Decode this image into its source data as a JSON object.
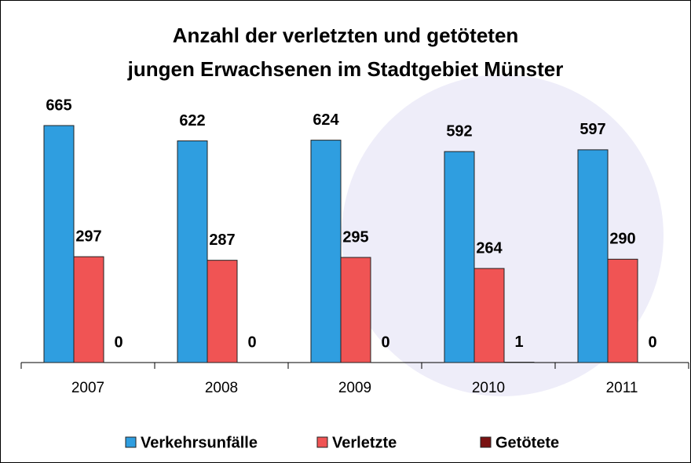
{
  "chart_data": {
    "type": "bar",
    "title": [
      "Anzahl der verletzten und getöteten",
      "jungen Erwachsenen im Stadtgebiet Münster"
    ],
    "categories": [
      "2007",
      "2008",
      "2009",
      "2010",
      "2011"
    ],
    "series": [
      {
        "name": "Verkehrsunfälle",
        "color": "#2f9ee0",
        "values": [
          665,
          622,
          624,
          592,
          597
        ]
      },
      {
        "name": "Verletzte",
        "color": "#f05454",
        "values": [
          297,
          287,
          295,
          264,
          290
        ]
      },
      {
        "name": "Getötete",
        "color": "#7a1212",
        "values": [
          0,
          0,
          0,
          1,
          0
        ]
      }
    ]
  }
}
